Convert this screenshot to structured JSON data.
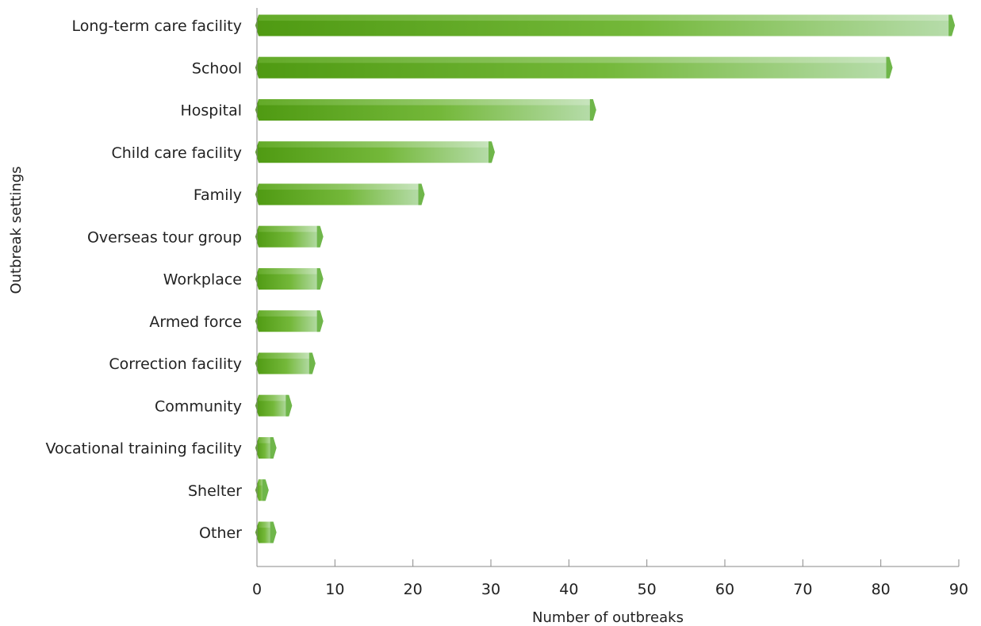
{
  "chart_data": {
    "type": "bar",
    "orientation": "horizontal",
    "title": "",
    "xlabel": "Number of outbreaks",
    "ylabel": "Outbreak settings",
    "categories": [
      "Long-term care facility",
      "School",
      "Hospital",
      "Child care facility",
      "Family",
      "Overseas tour group",
      "Workplace",
      "Armed force",
      "Correction facility",
      "Community",
      "Vocational training facility",
      "Shelter",
      "Other"
    ],
    "values": [
      89,
      81,
      43,
      30,
      21,
      8,
      8,
      8,
      7,
      4,
      2,
      1,
      2
    ],
    "xlim": [
      0,
      90
    ],
    "xticks": [
      0,
      10,
      20,
      30,
      40,
      50,
      60,
      70,
      80,
      90
    ],
    "grid": false,
    "legend": "none",
    "colors": {
      "bar_dark": "#4f9a12",
      "bar_mid": "#74b83a",
      "bar_light": "#b6dcaa",
      "bar_highlight": "#d7ecd0",
      "bar_tip": "#6fb64a",
      "axis": "#888888"
    }
  }
}
